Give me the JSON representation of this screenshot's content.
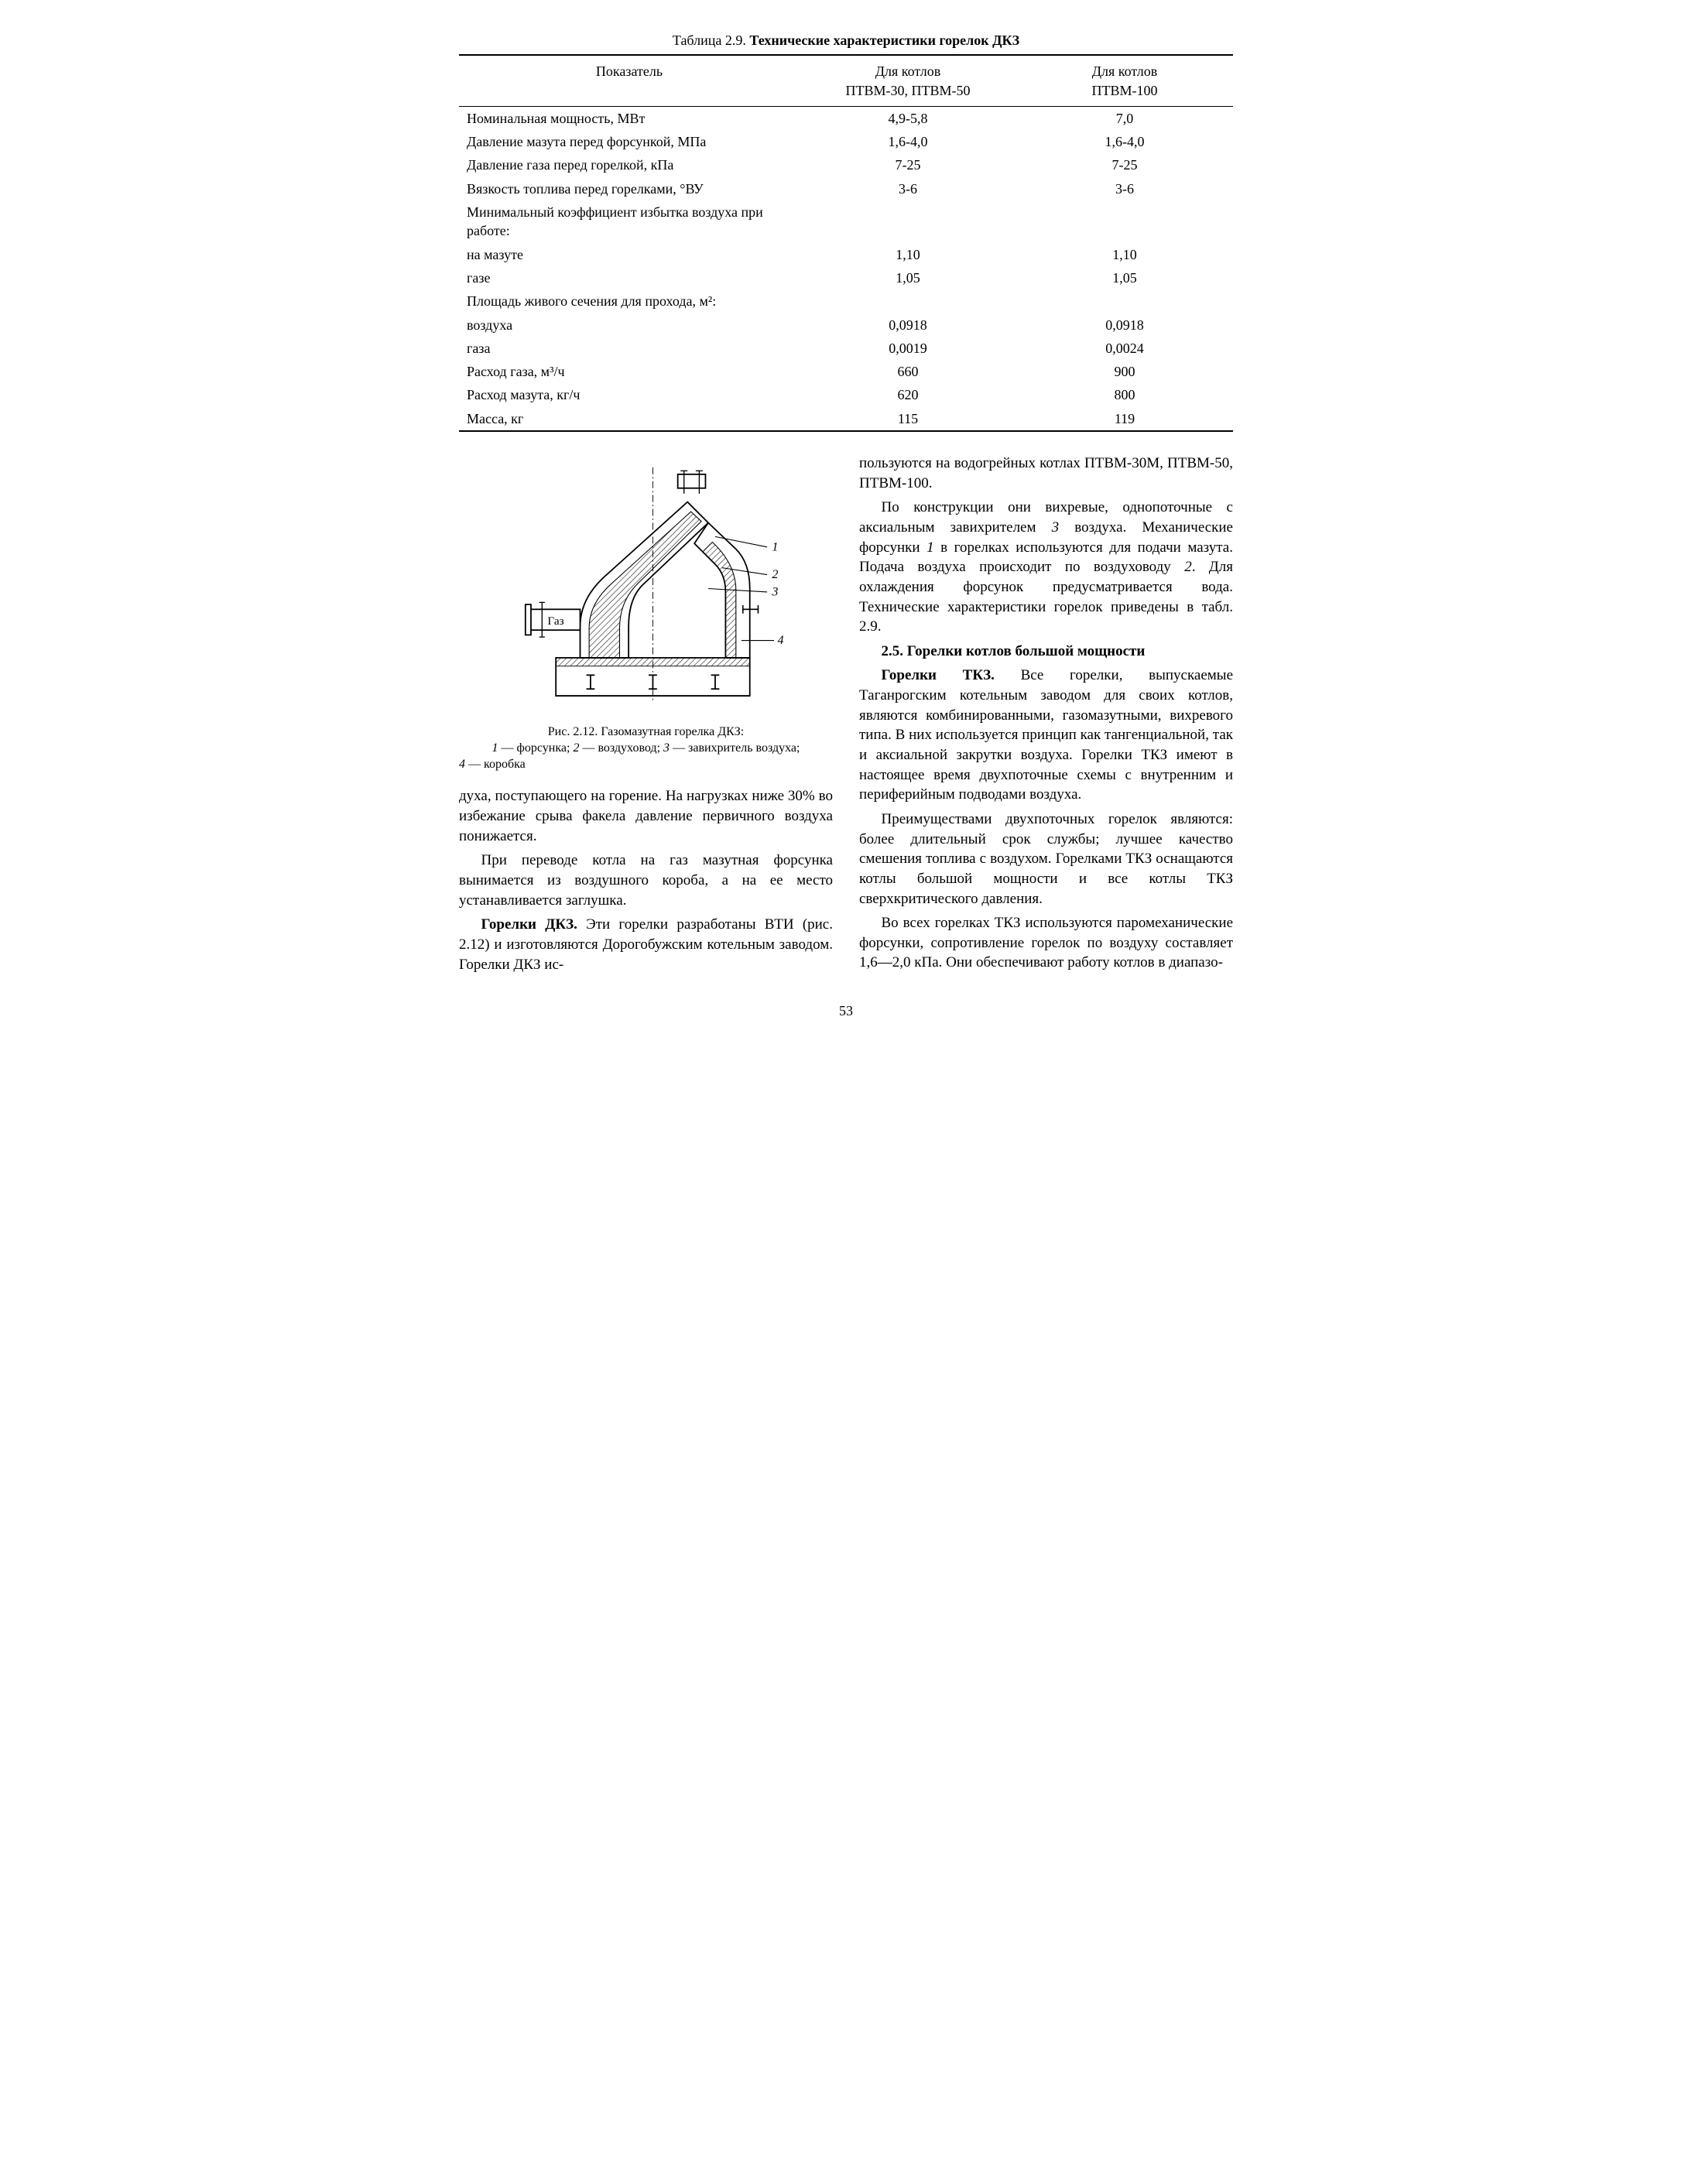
{
  "table": {
    "title_prefix": "Таблица 2.9. ",
    "title_bold": "Технические характеристики горелок ДКЗ",
    "head": {
      "c1": "Показатель",
      "c2_l1": "Для котлов",
      "c2_l2": "ПТВМ-30, ПТВМ-50",
      "c3_l1": "Для котлов",
      "c3_l2": "ПТВМ-100"
    },
    "rows": [
      {
        "p": "Номинальная мощность, МВт",
        "a": "4,9-5,8",
        "b": "7,0"
      },
      {
        "p": "Давление мазута перед форсункой, МПа",
        "a": "1,6-4,0",
        "b": "1,6-4,0"
      },
      {
        "p": "Давление газа перед горелкой, кПа",
        "a": "7-25",
        "b": "7-25"
      },
      {
        "p": "Вязкость топлива перед горелками, °ВУ",
        "a": "3-6",
        "b": "3-6"
      },
      {
        "p": "Минимальный коэффициент избытка воздуха при работе:",
        "a": "",
        "b": ""
      },
      {
        "p": "на мазуте",
        "a": "1,10",
        "b": "1,10",
        "indent": true
      },
      {
        "p": "газе",
        "a": "1,05",
        "b": "1,05",
        "indent": true
      },
      {
        "p": "Площадь живого сечения для прохода, м²:",
        "a": "",
        "b": ""
      },
      {
        "p": "воздуха",
        "a": "0,0918",
        "b": "0,0918",
        "indent": true
      },
      {
        "p": "газа",
        "a": "0,0019",
        "b": "0,0024",
        "indent": true
      },
      {
        "p": "Расход газа, м³/ч",
        "a": "660",
        "b": "900"
      },
      {
        "p": "Расход мазута, кг/ч",
        "a": "620",
        "b": "800"
      },
      {
        "p": "Масса, кг",
        "a": "115",
        "b": "119"
      }
    ]
  },
  "figure": {
    "label_gas": "Газ",
    "callouts": [
      "1",
      "2",
      "3",
      "4"
    ],
    "caption_line1": "Рис. 2.12. Газомазутная горелка ДКЗ:",
    "caption_line2_a": "1",
    "caption_line2_at": " — форсунка; ",
    "caption_line2_b": "2",
    "caption_line2_bt": " — воздуховод; ",
    "caption_line2_c": "3",
    "caption_line2_ct": " — завихритель воздуха;",
    "caption_line3_d": "4",
    "caption_line3_dt": " — коробка"
  },
  "body": {
    "p1": "духа, поступающего на горение. На нагрузках ниже 30% во избежание срыва факела давление первичного воздуха понижается.",
    "p2": "При переводе котла на газ мазутная форсунка вынимается из воздушного короба, а на ее место устанавливается заглушка.",
    "p3_lead": "Горелки ДКЗ.",
    "p3_rest": " Эти горелки разработаны ВТИ (рис. 2.12) и изготовляются Дорогобужским котельным заводом. Горелки ДКЗ ис-",
    "p4": "пользуются на водогрейных котлах ПТВМ-30М, ПТВМ-50, ПТВМ-100.",
    "p5_a": "По конструкции они вихревые, однопоточные с аксиальным завихрителем ",
    "p5_3": "3",
    "p5_b": " воздуха. Механические форсунки ",
    "p5_1": "1",
    "p5_c": " в горелках используются для подачи мазута. Подача воздуха происходит по воздуховоду ",
    "p5_2": "2",
    "p5_d": ". Для охлаждения форсунок предусматривается вода. Технические характеристики горелок приведены в табл. 2.9.",
    "h1": "2.5. Горелки котлов большой мощности",
    "p6_lead": "Горелки ТКЗ.",
    "p6_rest": " Все горелки, выпускаемые Таганрогским котельным заводом для своих котлов, являются комбинированными, газомазутными, вихревого типа. В них используется принцип как тангенциальной, так и аксиальной закрутки воздуха. Горелки ТКЗ имеют в настоящее время двухпоточные схемы с внутренним и периферийным подводами воздуха.",
    "p7": "Преимуществами двухпоточных горелок являются: более длительный срок службы; лучшее качество смешения топлива с воздухом. Горелками ТКЗ оснащаются котлы большой мощности и все котлы ТКЗ сверхкритического давления.",
    "p8": "Во всех горелках ТКЗ используются паромеханические форсунки, сопротивление горелок по воздуху составляет 1,6—2,0 кПа. Они обеспечивают работу котлов в диапазо-"
  },
  "pagenum": "53",
  "colors": {
    "stroke": "#000000",
    "hatch": "#000000",
    "bg": "#ffffff"
  }
}
